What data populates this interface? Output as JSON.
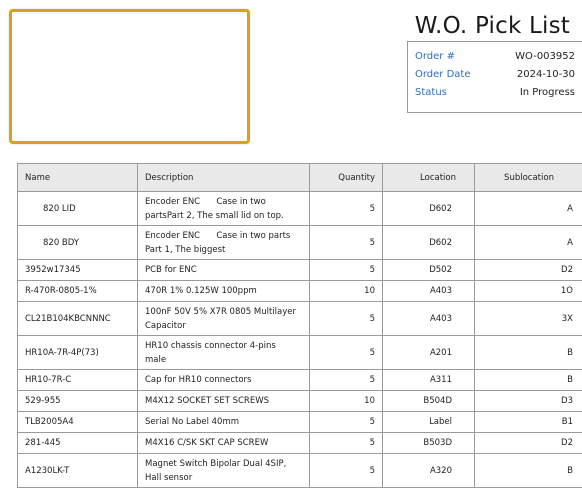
{
  "header": {
    "title": "W.O. Pick List"
  },
  "meta": [
    {
      "label": "Order #",
      "value": "WO-003952"
    },
    {
      "label": "Order Date",
      "value": "2024-10-30"
    },
    {
      "label": "Status",
      "value": "In Progress"
    }
  ],
  "table": {
    "columns": [
      "Name",
      "Description",
      "Quantity",
      "Location",
      "Sublocation"
    ],
    "rows": [
      {
        "name": "820 LID",
        "description_line1": "Encoder ENC      Case in two",
        "description_line2": "partsPart 2, The small lid on top.",
        "quantity": "5",
        "location": "D602",
        "sublocation": "A"
      },
      {
        "name": "820 BDY",
        "description_line1": "Encoder ENC      Case in two parts",
        "description_line2": "Part 1, The biggest",
        "quantity": "5",
        "location": "D602",
        "sublocation": "A"
      },
      {
        "name": "3952w17345",
        "description_line1": "PCB for ENC",
        "description_line2": "",
        "quantity": "5",
        "location": "D502",
        "sublocation": "D2"
      },
      {
        "name": "R-470R-0805-1%",
        "description_line1": "470R 1% 0.125W 100ppm",
        "description_line2": "",
        "quantity": "10",
        "location": "A403",
        "sublocation": "1O"
      },
      {
        "name": "CL21B104KBCNNNC",
        "description_line1": "100nF 50V 5% X7R 0805 Multilayer",
        "description_line2": "Capacitor",
        "quantity": "5",
        "location": "A403",
        "sublocation": "3X"
      },
      {
        "name": "HR10A-7R-4P(73)",
        "description_line1": "HR10 chassis connector 4-pins",
        "description_line2": "male",
        "quantity": "5",
        "location": "A201",
        "sublocation": "B"
      },
      {
        "name": "HR10-7R-C",
        "description_line1": "Cap for HR10 connectors",
        "description_line2": "",
        "quantity": "5",
        "location": "A311",
        "sublocation": "B"
      },
      {
        "name": "529-955",
        "description_line1": "M4X12 SOCKET SET SCREWS",
        "description_line2": "",
        "quantity": "10",
        "location": "B504D",
        "sublocation": "D3"
      },
      {
        "name": "TLB2005A4",
        "description_line1": "Serial No Label 40mm",
        "description_line2": "",
        "quantity": "5",
        "location": "Label",
        "sublocation": "B1"
      },
      {
        "name": "281-445",
        "description_line1": "M4X16 C/SK SKT CAP SCREW",
        "description_line2": "",
        "quantity": "5",
        "location": "B503D",
        "sublocation": "D2"
      },
      {
        "name": "A1230LK-T",
        "description_line1": "Magnet Switch Bipolar Dual 4SIP,",
        "description_line2": "Hall sensor",
        "quantity": "5",
        "location": "A320",
        "sublocation": "B"
      }
    ]
  },
  "colors": {
    "accent_label": "#2f6fba",
    "logo_border": "#d9a21b",
    "header_bg": "#e9e9e9"
  }
}
